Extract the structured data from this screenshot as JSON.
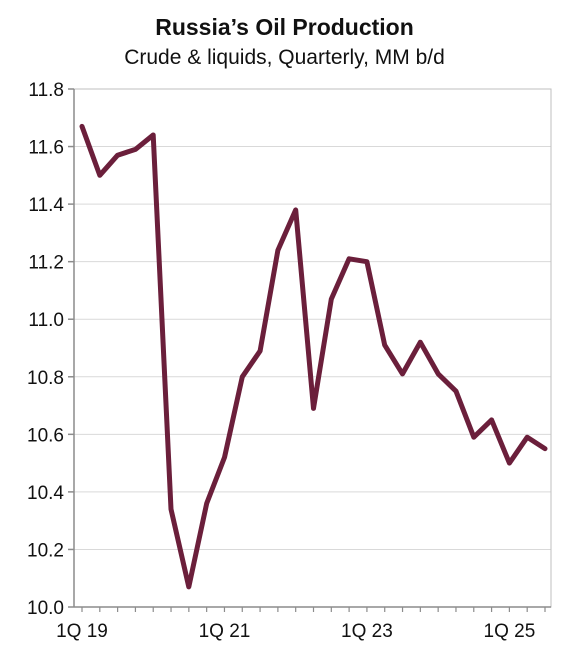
{
  "chart_data": {
    "type": "line",
    "title": "Russia’s Oil Production",
    "subtitle": "Crude & liquids, Quarterly, MM b/d",
    "xlabel": "",
    "ylabel": "",
    "ylim": [
      10.0,
      11.8
    ],
    "grid": true,
    "legend": "none",
    "y_ticks": [
      "10.0",
      "10.2",
      "10.4",
      "10.6",
      "10.8",
      "11.0",
      "11.2",
      "11.4",
      "11.6",
      "11.8"
    ],
    "x_ticks": [
      {
        "label": "1Q 19",
        "index": 0
      },
      {
        "label": "1Q 21",
        "index": 8
      },
      {
        "label": "1Q 23",
        "index": 16
      },
      {
        "label": "1Q 25",
        "index": 24
      }
    ],
    "x": [
      "1Q 19",
      "2Q 19",
      "3Q 19",
      "4Q 19",
      "1Q 20",
      "2Q 20",
      "3Q 20",
      "4Q 20",
      "1Q 21",
      "2Q 21",
      "3Q 21",
      "4Q 21",
      "1Q 22",
      "2Q 22",
      "3Q 22",
      "4Q 22",
      "1Q 23",
      "2Q 23",
      "3Q 23",
      "4Q 23",
      "1Q 24",
      "2Q 24",
      "3Q 24",
      "4Q 24",
      "1Q 25",
      "2Q 25",
      "3Q 25"
    ],
    "series": [
      {
        "color": "#6b1f3b",
        "values": [
          11.67,
          11.5,
          11.57,
          11.59,
          11.64,
          10.34,
          10.07,
          10.36,
          10.52,
          10.8,
          10.89,
          11.24,
          11.38,
          10.69,
          11.07,
          11.21,
          11.2,
          10.91,
          10.81,
          10.92,
          10.81,
          10.75,
          10.59,
          10.65,
          10.5,
          10.59,
          10.55
        ]
      }
    ]
  }
}
